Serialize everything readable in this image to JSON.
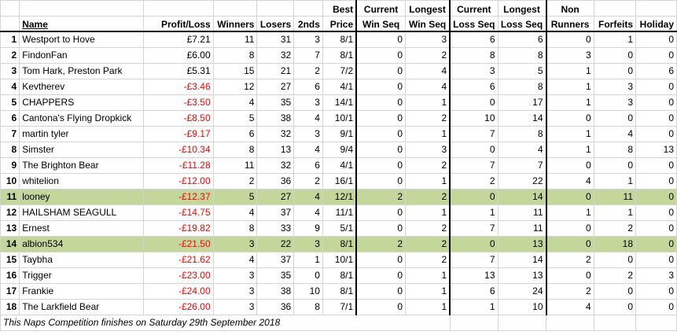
{
  "headers": {
    "name": "Name",
    "profit_loss": "Profit/Loss",
    "winners": "Winners",
    "losers": "Losers",
    "seconds": "2nds",
    "best_price_1": "Best",
    "best_price_2": "Price",
    "current_win_1": "Current",
    "current_win_2": "Win Seq",
    "longest_win_1": "Longest",
    "longest_win_2": "Win Seq",
    "current_loss_1": "Current",
    "current_loss_2": "Loss Seq",
    "longest_loss_1": "Longest",
    "longest_loss_2": "Loss Seq",
    "non_runners_1": "Non",
    "non_runners_2": "Runners",
    "forfeits": "Forfeits",
    "holiday": "Holiday"
  },
  "rows": [
    {
      "pos": "1",
      "name": "Westport to Hove",
      "pl": "£7.21",
      "neg": false,
      "w": "11",
      "l": "31",
      "s": "3",
      "bp": "8/1",
      "cws": "0",
      "lws": "3",
      "cls": "6",
      "lls": "6",
      "nr": "0",
      "f": "1",
      "h": "0",
      "hl": false
    },
    {
      "pos": "2",
      "name": "FindonFan",
      "pl": "£6.00",
      "neg": false,
      "w": "8",
      "l": "32",
      "s": "7",
      "bp": "8/1",
      "cws": "0",
      "lws": "2",
      "cls": "8",
      "lls": "8",
      "nr": "3",
      "f": "0",
      "h": "0",
      "hl": false
    },
    {
      "pos": "3",
      "name": "Tom Hark, Preston Park",
      "pl": "£5.31",
      "neg": false,
      "w": "15",
      "l": "21",
      "s": "2",
      "bp": "7/2",
      "cws": "0",
      "lws": "4",
      "cls": "3",
      "lls": "5",
      "nr": "1",
      "f": "0",
      "h": "6",
      "hl": false
    },
    {
      "pos": "4",
      "name": "Kevtherev",
      "pl": "-£3.46",
      "neg": true,
      "w": "12",
      "l": "27",
      "s": "6",
      "bp": "4/1",
      "cws": "0",
      "lws": "4",
      "cls": "6",
      "lls": "8",
      "nr": "1",
      "f": "3",
      "h": "0",
      "hl": false
    },
    {
      "pos": "5",
      "name": "CHAPPERS",
      "pl": "-£3.50",
      "neg": true,
      "w": "4",
      "l": "35",
      "s": "3",
      "bp": "14/1",
      "cws": "0",
      "lws": "1",
      "cls": "0",
      "lls": "17",
      "nr": "1",
      "f": "3",
      "h": "0",
      "hl": false
    },
    {
      "pos": "6",
      "name": "Cantona's Flying Dropkick",
      "pl": "-£8.50",
      "neg": true,
      "w": "5",
      "l": "38",
      "s": "4",
      "bp": "10/1",
      "cws": "0",
      "lws": "2",
      "cls": "10",
      "lls": "14",
      "nr": "0",
      "f": "0",
      "h": "0",
      "hl": false
    },
    {
      "pos": "7",
      "name": "martin tyler",
      "pl": "-£9.17",
      "neg": true,
      "w": "6",
      "l": "32",
      "s": "3",
      "bp": "9/1",
      "cws": "0",
      "lws": "1",
      "cls": "7",
      "lls": "8",
      "nr": "1",
      "f": "4",
      "h": "0",
      "hl": false
    },
    {
      "pos": "8",
      "name": "Simster",
      "pl": "-£10.34",
      "neg": true,
      "w": "8",
      "l": "13",
      "s": "4",
      "bp": "9/4",
      "cws": "0",
      "lws": "3",
      "cls": "0",
      "lls": "4",
      "nr": "1",
      "f": "8",
      "h": "13",
      "hl": false
    },
    {
      "pos": "9",
      "name": "The Brighton Bear",
      "pl": "-£11.28",
      "neg": true,
      "w": "11",
      "l": "32",
      "s": "6",
      "bp": "4/1",
      "cws": "0",
      "lws": "2",
      "cls": "7",
      "lls": "7",
      "nr": "0",
      "f": "0",
      "h": "0",
      "hl": false
    },
    {
      "pos": "10",
      "name": "whitelion",
      "pl": "-£12.00",
      "neg": true,
      "w": "2",
      "l": "36",
      "s": "2",
      "bp": "16/1",
      "cws": "0",
      "lws": "1",
      "cls": "2",
      "lls": "22",
      "nr": "4",
      "f": "1",
      "h": "0",
      "hl": false
    },
    {
      "pos": "11",
      "name": "looney",
      "pl": "-£12.37",
      "neg": true,
      "w": "5",
      "l": "27",
      "s": "4",
      "bp": "12/1",
      "cws": "2",
      "lws": "2",
      "cls": "0",
      "lls": "14",
      "nr": "0",
      "f": "11",
      "h": "0",
      "hl": true
    },
    {
      "pos": "12",
      "name": "HAILSHAM SEAGULL",
      "pl": "-£14.75",
      "neg": true,
      "w": "4",
      "l": "37",
      "s": "4",
      "bp": "11/1",
      "cws": "0",
      "lws": "1",
      "cls": "1",
      "lls": "11",
      "nr": "1",
      "f": "1",
      "h": "0",
      "hl": false
    },
    {
      "pos": "13",
      "name": "Ernest",
      "pl": "-£19.82",
      "neg": true,
      "w": "8",
      "l": "33",
      "s": "9",
      "bp": "5/1",
      "cws": "0",
      "lws": "2",
      "cls": "7",
      "lls": "11",
      "nr": "0",
      "f": "2",
      "h": "0",
      "hl": false
    },
    {
      "pos": "14",
      "name": "albion534",
      "pl": "-£21.50",
      "neg": true,
      "w": "3",
      "l": "22",
      "s": "3",
      "bp": "8/1",
      "cws": "2",
      "lws": "2",
      "cls": "0",
      "lls": "13",
      "nr": "0",
      "f": "18",
      "h": "0",
      "hl": true
    },
    {
      "pos": "15",
      "name": "Taybha",
      "pl": "-£21.62",
      "neg": true,
      "w": "4",
      "l": "37",
      "s": "1",
      "bp": "10/1",
      "cws": "0",
      "lws": "2",
      "cls": "7",
      "lls": "14",
      "nr": "2",
      "f": "0",
      "h": "0",
      "hl": false
    },
    {
      "pos": "16",
      "name": "Trigger",
      "pl": "-£23.00",
      "neg": true,
      "w": "3",
      "l": "35",
      "s": "0",
      "bp": "8/1",
      "cws": "0",
      "lws": "1",
      "cls": "13",
      "lls": "13",
      "nr": "0",
      "f": "2",
      "h": "3",
      "hl": false
    },
    {
      "pos": "17",
      "name": "Frankie",
      "pl": "-£24.00",
      "neg": true,
      "w": "3",
      "l": "38",
      "s": "10",
      "bp": "8/1",
      "cws": "0",
      "lws": "1",
      "cls": "6",
      "lls": "24",
      "nr": "2",
      "f": "0",
      "h": "0",
      "hl": false
    },
    {
      "pos": "18",
      "name": "The Larkfield Bear",
      "pl": "-£26.00",
      "neg": true,
      "w": "3",
      "l": "36",
      "s": "8",
      "bp": "7/1",
      "cws": "0",
      "lws": "1",
      "cls": "1",
      "lls": "10",
      "nr": "4",
      "f": "0",
      "h": "0",
      "hl": false
    }
  ],
  "footer": "This Naps Competition finishes on Saturday 29th September 2018",
  "colors": {
    "highlight": "#c4d79b",
    "negative": "#ff0000",
    "grid": "#d4d4d4"
  }
}
